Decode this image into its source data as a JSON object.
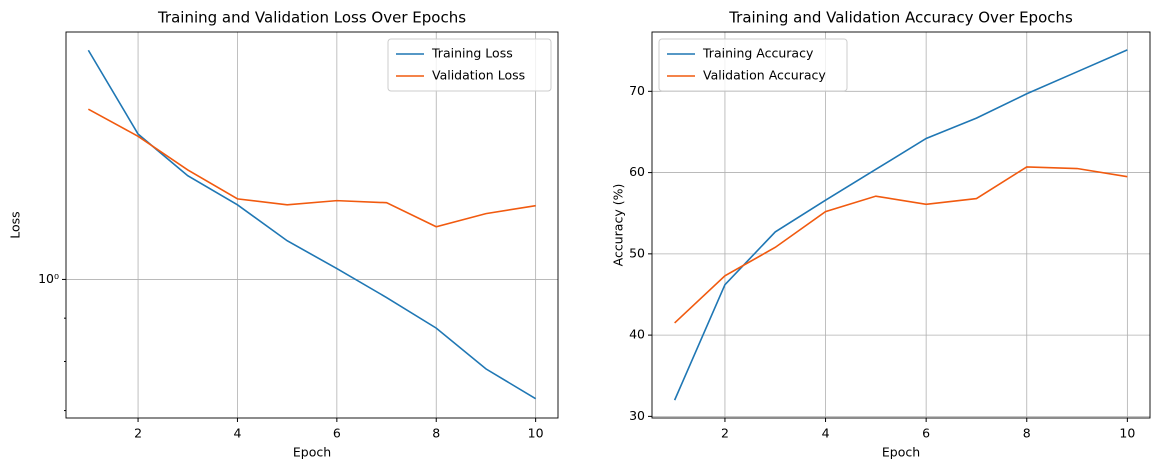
{
  "chart_data": [
    {
      "type": "line",
      "title": "Training and Validation Loss Over Epochs",
      "x_label": "Epoch",
      "y_label": "Loss",
      "x": [
        1,
        2,
        3,
        4,
        5,
        6,
        7,
        8,
        9,
        10
      ],
      "series": [
        {
          "name": "Training Loss",
          "color": "#1f77b4",
          "values": [
            1.865,
            1.485,
            1.326,
            1.225,
            1.111,
            1.03,
            0.952,
            0.876,
            0.784,
            0.723
          ]
        },
        {
          "name": "Validation Loss",
          "color": "#f15a0f",
          "values": [
            1.589,
            1.476,
            1.347,
            1.245,
            1.225,
            1.239,
            1.232,
            1.154,
            1.196,
            1.222
          ]
        }
      ],
      "xlim": [
        0.55,
        10.45
      ],
      "xticks": [
        2,
        4,
        6,
        8,
        10
      ],
      "ylim": [
        0.686,
        1.96
      ],
      "yticks": [
        {
          "value": 1,
          "label": "10⁰"
        }
      ],
      "yminorticks": [
        0.9,
        0.8,
        0.7
      ],
      "log_y": true,
      "grid": true,
      "legend": "upper right"
    },
    {
      "type": "line",
      "title": "Training and Validation Accuracy Over Epochs",
      "x_label": "Epoch",
      "y_label": "Accuracy (%)",
      "x": [
        1,
        2,
        3,
        4,
        5,
        6,
        7,
        8,
        9,
        10
      ],
      "series": [
        {
          "name": "Training Accuracy",
          "color": "#1f77b4",
          "values": [
            32.0,
            46.2,
            52.7,
            56.6,
            60.4,
            64.2,
            66.7,
            69.7,
            72.4,
            75.1
          ]
        },
        {
          "name": "Validation Accuracy",
          "color": "#f15a0f",
          "values": [
            41.5,
            47.3,
            50.8,
            55.2,
            57.1,
            56.1,
            56.8,
            60.7,
            60.5,
            59.5
          ]
        }
      ],
      "xlim": [
        0.55,
        10.45
      ],
      "xticks": [
        2,
        4,
        6,
        8,
        10
      ],
      "ylim": [
        29.8,
        77.3
      ],
      "yticks": [
        30,
        40,
        50,
        60,
        70
      ],
      "log_y": false,
      "grid": true,
      "legend": "upper left"
    }
  ]
}
